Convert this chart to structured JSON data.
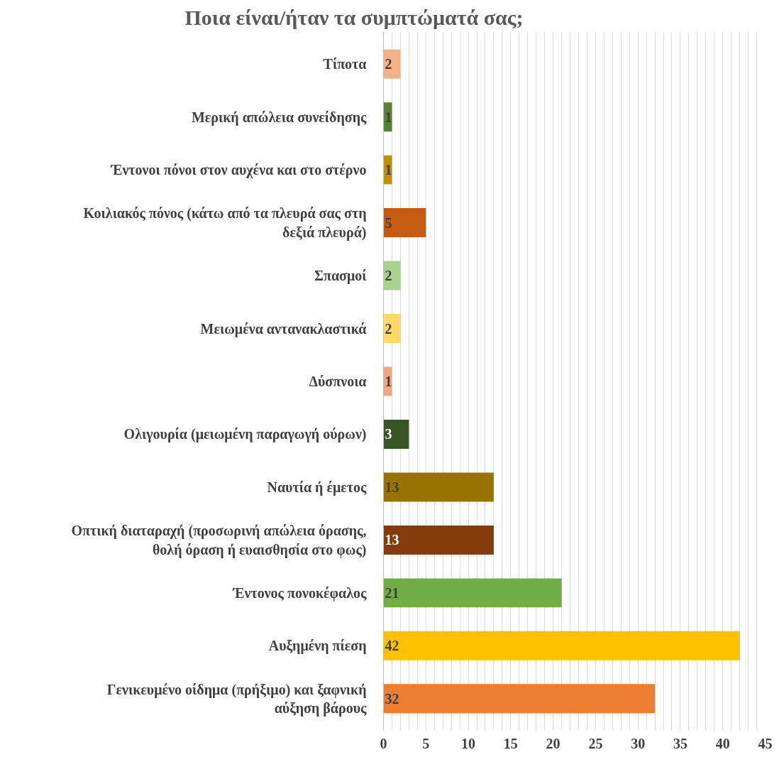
{
  "chart_data": {
    "type": "bar",
    "orientation": "horizontal",
    "title": "Ποια είναι/ήταν τα συμπτώματά σας;",
    "categories": [
      "Τίποτα",
      "Μερική απώλεια συνείδησης",
      "Έντονοι πόνοι στον αυχένα και στο στέρνο",
      "Κοιλιακός πόνος (κάτω από τα πλευρά σας στη δεξιά πλευρά)",
      "Σπασμοί",
      "Μειωμένα αντανακλαστικά",
      "Δύσπνοια",
      "Ολιγουρία (μειωμένη παραγωγή ούρων)",
      "Ναυτία ή έμετος",
      "Οπτική διαταραχή (προσωρινή απώλεια όρασης, θολή όραση ή ευαισθησία στο φως)",
      "Έντονος πονοκέφαλος",
      "Αυξημένη πίεση",
      "Γενικευμένο οίδημα (πρήξιμο) και ξαφνική αύξηση βάρους"
    ],
    "values": [
      2,
      1,
      1,
      5,
      2,
      2,
      1,
      3,
      13,
      13,
      21,
      42,
      32
    ],
    "colors": [
      "#f4b183",
      "#548235",
      "#bf9000",
      "#c55a11",
      "#a9d18e",
      "#ffd966",
      "#f4a582",
      "#375623",
      "#997300",
      "#843c0c",
      "#70ad47",
      "#ffc000",
      "#ed7d31"
    ],
    "xlim": [
      0,
      45
    ],
    "xticks": [
      0,
      {
        "value": 1,
        "label": null
      },
      {
        "value": 2,
        "label": null
      },
      {
        "value": 3,
        "label": null
      },
      {
        "value": 4,
        "label": null
      },
      5,
      {
        "value": 6,
        "label": null
      },
      {
        "value": 7,
        "label": null
      },
      {
        "value": 8,
        "label": null
      },
      {
        "value": 9,
        "label": null
      },
      10,
      {
        "value": 11,
        "label": null
      },
      {
        "value": 12,
        "label": null
      },
      {
        "value": 13,
        "label": null
      },
      {
        "value": 14,
        "label": null
      },
      15,
      {
        "value": 16,
        "label": null
      },
      {
        "value": 17,
        "label": null
      },
      {
        "value": 18,
        "label": null
      },
      {
        "value": 19,
        "label": null
      },
      20,
      {
        "value": 21,
        "label": null
      },
      {
        "value": 22,
        "label": null
      },
      {
        "value": 23,
        "label": null
      },
      {
        "value": 24,
        "label": null
      },
      25,
      {
        "value": 26,
        "label": null
      },
      {
        "value": 27,
        "label": null
      },
      {
        "value": 28,
        "label": null
      },
      {
        "value": 29,
        "label": null
      },
      30,
      {
        "value": 31,
        "label": null
      },
      {
        "value": 32,
        "label": null
      },
      {
        "value": 33,
        "label": null
      },
      {
        "value": 34,
        "label": null
      },
      35,
      {
        "value": 36,
        "label": null
      },
      {
        "value": 37,
        "label": null
      },
      {
        "value": 38,
        "label": null
      },
      {
        "value": 39,
        "label": null
      },
      40,
      {
        "value": 41,
        "label": null
      },
      {
        "value": 42,
        "label": null
      },
      {
        "value": 43,
        "label": null
      },
      {
        "value": 44,
        "label": null
      },
      45
    ],
    "grid": "x",
    "data_labels": true
  }
}
